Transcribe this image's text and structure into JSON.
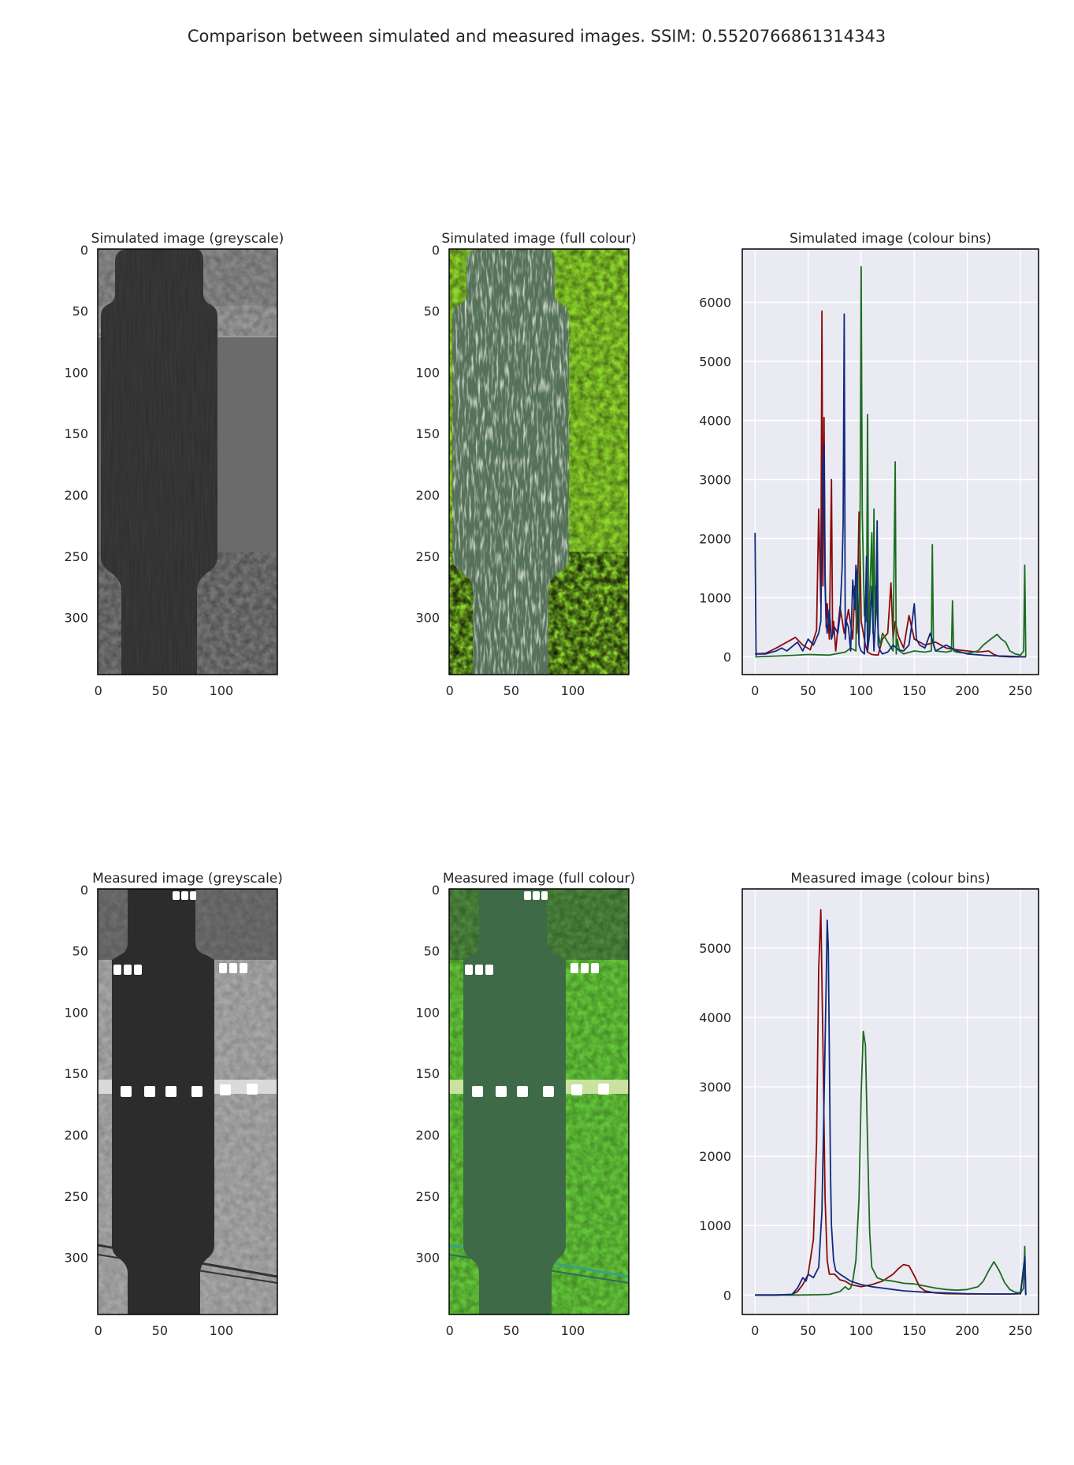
{
  "figure": {
    "title": "Comparison between simulated and measured images. SSIM: 0.5520766861314343"
  },
  "colors": {
    "red": "#8c0a0a",
    "green": "#1a6e1e",
    "blue": "#0f2a80",
    "plot_background": "#eaeaf2",
    "grid": "#ffffff"
  },
  "panels": [
    {
      "id": "sim-grey",
      "title": "Simulated image (greyscale)",
      "kind": "image",
      "style": "greyscale",
      "xticks": [
        "0",
        "50",
        "100"
      ],
      "yticks": [
        "0",
        "50",
        "100",
        "150",
        "200",
        "250",
        "300"
      ]
    },
    {
      "id": "sim-colour",
      "title": "Simulated image (full colour)",
      "kind": "image",
      "style": "colour",
      "xticks": [
        "0",
        "50",
        "100"
      ],
      "yticks": [
        "0",
        "50",
        "100",
        "150",
        "200",
        "250",
        "300"
      ]
    },
    {
      "id": "meas-grey",
      "title": "Measured image (greyscale)",
      "kind": "image",
      "style": "greyscale",
      "xticks": [
        "0",
        "50",
        "100"
      ],
      "yticks": [
        "0",
        "50",
        "100",
        "150",
        "200",
        "250",
        "300"
      ]
    },
    {
      "id": "meas-colour",
      "title": "Measured image (full colour)",
      "kind": "image",
      "style": "colour",
      "xticks": [
        "0",
        "50",
        "100"
      ],
      "yticks": [
        "0",
        "50",
        "100",
        "150",
        "200",
        "250",
        "300"
      ]
    }
  ],
  "chart_data": [
    {
      "type": "line",
      "title": "Simulated image (colour bins)",
      "xlim": [
        -12,
        267
      ],
      "ylim": [
        -300,
        6900
      ],
      "xticks": [
        0,
        50,
        100,
        150,
        200,
        250
      ],
      "yticks": [
        0,
        1000,
        2000,
        3000,
        4000,
        5000,
        6000
      ],
      "grid": true,
      "series": [
        {
          "color": "red",
          "x": [
            0,
            10,
            20,
            30,
            38,
            45,
            52,
            58,
            60,
            62,
            63,
            64,
            65,
            66,
            67,
            68,
            70,
            72,
            73,
            74,
            76,
            80,
            84,
            88,
            92,
            94,
            96,
            98,
            99,
            100,
            102,
            104,
            106,
            110,
            116,
            120,
            125,
            128,
            130,
            132,
            135,
            140,
            145,
            150,
            160,
            170,
            180,
            190,
            200,
            210,
            220,
            225,
            230,
            240,
            255
          ],
          "values": [
            50,
            60,
            150,
            250,
            330,
            200,
            120,
            450,
            2500,
            900,
            5850,
            1200,
            4050,
            1400,
            500,
            900,
            300,
            3000,
            400,
            600,
            100,
            850,
            400,
            800,
            300,
            1200,
            400,
            2450,
            1800,
            600,
            400,
            200,
            80,
            40,
            30,
            300,
            400,
            1250,
            300,
            600,
            350,
            150,
            700,
            300,
            200,
            250,
            150,
            120,
            100,
            80,
            100,
            40,
            10,
            0,
            0
          ]
        },
        {
          "color": "green",
          "x": [
            0,
            30,
            50,
            70,
            85,
            90,
            95,
            96,
            98,
            99,
            100,
            101,
            103,
            105,
            106,
            107,
            108,
            110,
            111,
            112,
            113,
            114,
            116,
            118,
            120,
            125,
            130,
            132,
            133,
            134,
            136,
            140,
            150,
            160,
            166,
            167,
            168,
            170,
            180,
            185,
            186,
            187,
            190,
            200,
            210,
            215,
            222,
            228,
            232,
            236,
            240,
            245,
            250,
            253,
            254,
            255
          ],
          "values": [
            0,
            20,
            40,
            30,
            80,
            150,
            100,
            1400,
            300,
            2400,
            6600,
            2400,
            700,
            600,
            4100,
            300,
            1000,
            2100,
            400,
            2500,
            500,
            1200,
            400,
            200,
            400,
            250,
            100,
            3300,
            50,
            300,
            100,
            50,
            100,
            80,
            100,
            1900,
            200,
            100,
            80,
            100,
            950,
            100,
            80,
            60,
            100,
            200,
            300,
            380,
            300,
            250,
            100,
            50,
            30,
            100,
            1550,
            0
          ]
        },
        {
          "color": "blue",
          "x": [
            0,
            1,
            2,
            10,
            20,
            25,
            30,
            40,
            45,
            50,
            55,
            60,
            62,
            63,
            64,
            65,
            66,
            67,
            68,
            70,
            72,
            75,
            78,
            80,
            82,
            83,
            84,
            85,
            86,
            88,
            90,
            92,
            94,
            95,
            96,
            97,
            98,
            100,
            103,
            105,
            106,
            108,
            110,
            112,
            114,
            115,
            116,
            118,
            120,
            125,
            130,
            135,
            140,
            145,
            148,
            150,
            152,
            155,
            160,
            165,
            170,
            180,
            190,
            200,
            220,
            240,
            255
          ],
          "values": [
            2100,
            30,
            50,
            50,
            100,
            150,
            100,
            250,
            100,
            300,
            200,
            400,
            600,
            2100,
            3200,
            3600,
            1200,
            600,
            400,
            800,
            300,
            500,
            400,
            700,
            1500,
            2250,
            5800,
            300,
            600,
            500,
            100,
            1300,
            800,
            1550,
            1400,
            800,
            200,
            100,
            50,
            1700,
            100,
            400,
            1200,
            100,
            800,
            2300,
            200,
            100,
            50,
            80,
            200,
            120,
            100,
            200,
            600,
            900,
            300,
            200,
            150,
            400,
            100,
            200,
            100,
            50,
            20,
            10,
            0
          ]
        }
      ]
    },
    {
      "type": "line",
      "title": "Measured image (colour bins)",
      "xlim": [
        -12,
        267
      ],
      "ylim": [
        -280,
        5850
      ],
      "xticks": [
        0,
        50,
        100,
        150,
        200,
        250
      ],
      "yticks": [
        0,
        1000,
        2000,
        3000,
        4000,
        5000
      ],
      "grid": true,
      "series": [
        {
          "color": "red",
          "x": [
            0,
            20,
            35,
            40,
            45,
            50,
            55,
            58,
            60,
            62,
            64,
            66,
            68,
            70,
            75,
            80,
            85,
            90,
            100,
            110,
            120,
            130,
            135,
            140,
            145,
            150,
            155,
            160,
            170,
            180,
            200,
            220,
            240,
            250,
            254,
            255
          ],
          "values": [
            0,
            0,
            10,
            50,
            150,
            300,
            800,
            2200,
            4700,
            5550,
            3600,
            1400,
            500,
            300,
            300,
            220,
            200,
            150,
            120,
            150,
            200,
            300,
            380,
            440,
            420,
            280,
            120,
            60,
            30,
            20,
            15,
            15,
            15,
            20,
            500,
            0
          ]
        },
        {
          "color": "green",
          "x": [
            0,
            40,
            60,
            70,
            80,
            85,
            88,
            90,
            92,
            95,
            98,
            100,
            102,
            104,
            106,
            108,
            110,
            115,
            120,
            130,
            140,
            150,
            160,
            170,
            180,
            190,
            200,
            210,
            215,
            220,
            225,
            230,
            235,
            240,
            245,
            250,
            253,
            254,
            255
          ],
          "values": [
            0,
            0,
            5,
            10,
            50,
            120,
            80,
            100,
            200,
            500,
            1400,
            2900,
            3800,
            3600,
            2200,
            900,
            400,
            250,
            220,
            200,
            170,
            160,
            130,
            100,
            80,
            70,
            80,
            120,
            200,
            350,
            480,
            350,
            180,
            80,
            40,
            30,
            100,
            700,
            0
          ]
        },
        {
          "color": "blue",
          "x": [
            0,
            20,
            35,
            40,
            45,
            48,
            50,
            55,
            60,
            63,
            65,
            67,
            68,
            69,
            70,
            71,
            72,
            74,
            76,
            80,
            85,
            90,
            100,
            110,
            120,
            130,
            140,
            150,
            160,
            180,
            200,
            220,
            240,
            250,
            254,
            255
          ],
          "values": [
            0,
            0,
            10,
            100,
            250,
            200,
            300,
            250,
            400,
            1200,
            2800,
            4500,
            5400,
            5000,
            3500,
            1800,
            1000,
            500,
            350,
            300,
            250,
            200,
            150,
            120,
            100,
            80,
            60,
            50,
            40,
            30,
            20,
            15,
            15,
            20,
            550,
            0
          ]
        }
      ]
    }
  ]
}
